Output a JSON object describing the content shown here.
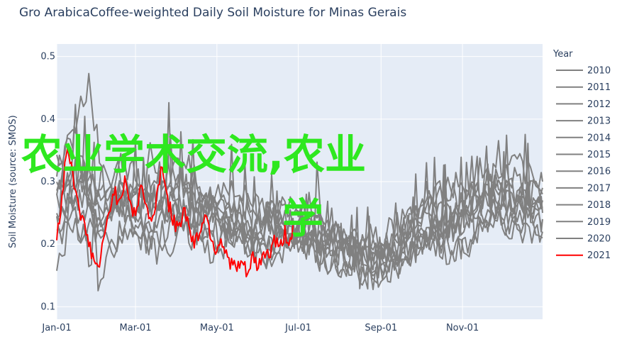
{
  "chart_data": {
    "type": "line",
    "title": "Gro ArabicaCoffee-weighted Daily Soil Moisture for Minas Gerais",
    "xlabel": "",
    "ylabel": "Soil Moisture (source: SMOS)",
    "x_tick_labels": [
      "Jan-01",
      "Mar-01",
      "May-01",
      "Jul-01",
      "Sep-01",
      "Nov-01"
    ],
    "y_tick_labels": [
      "0.1",
      "0.2",
      "0.3",
      "0.4",
      "0.5"
    ],
    "xlim_day_of_year": [
      1,
      365
    ],
    "ylim": [
      0.08,
      0.52
    ],
    "legend": {
      "title": "Year",
      "placement": "right"
    },
    "grid": true,
    "colors": {
      "plot_bg": "#e5ecf6",
      "grid": "#ffffff",
      "history": "#808080",
      "current": "#ff0000"
    },
    "series": [
      {
        "name": "2010",
        "color": "#808080",
        "anchors": [
          [
            1,
            0.25
          ],
          [
            20,
            0.3
          ],
          [
            35,
            0.22
          ],
          [
            50,
            0.34
          ],
          [
            70,
            0.27
          ],
          [
            90,
            0.32
          ],
          [
            110,
            0.25
          ],
          [
            130,
            0.28
          ],
          [
            150,
            0.21
          ],
          [
            170,
            0.26
          ],
          [
            200,
            0.22
          ],
          [
            230,
            0.2
          ],
          [
            250,
            0.17
          ],
          [
            270,
            0.22
          ],
          [
            290,
            0.29
          ],
          [
            310,
            0.25
          ],
          [
            330,
            0.31
          ],
          [
            365,
            0.27
          ]
        ]
      },
      {
        "name": "2011",
        "color": "#808080",
        "anchors": [
          [
            1,
            0.31
          ],
          [
            25,
            0.46
          ],
          [
            40,
            0.26
          ],
          [
            60,
            0.3
          ],
          [
            80,
            0.24
          ],
          [
            100,
            0.27
          ],
          [
            120,
            0.22
          ],
          [
            140,
            0.24
          ],
          [
            165,
            0.2
          ],
          [
            185,
            0.23
          ],
          [
            210,
            0.19
          ],
          [
            240,
            0.17
          ],
          [
            260,
            0.21
          ],
          [
            285,
            0.26
          ],
          [
            305,
            0.23
          ],
          [
            330,
            0.3
          ],
          [
            365,
            0.24
          ]
        ]
      },
      {
        "name": "2012",
        "color": "#808080",
        "anchors": [
          [
            1,
            0.27
          ],
          [
            15,
            0.35
          ],
          [
            30,
            0.28
          ],
          [
            55,
            0.25
          ],
          [
            75,
            0.33
          ],
          [
            95,
            0.29
          ],
          [
            115,
            0.26
          ],
          [
            135,
            0.22
          ],
          [
            155,
            0.25
          ],
          [
            180,
            0.21
          ],
          [
            205,
            0.24
          ],
          [
            225,
            0.18
          ],
          [
            255,
            0.2
          ],
          [
            275,
            0.27
          ],
          [
            300,
            0.22
          ],
          [
            320,
            0.33
          ],
          [
            345,
            0.26
          ],
          [
            365,
            0.29
          ]
        ]
      },
      {
        "name": "2013",
        "color": "#808080",
        "anchors": [
          [
            1,
            0.22
          ],
          [
            18,
            0.33
          ],
          [
            38,
            0.25
          ],
          [
            52,
            0.29
          ],
          [
            72,
            0.23
          ],
          [
            92,
            0.35
          ],
          [
            112,
            0.27
          ],
          [
            132,
            0.3
          ],
          [
            150,
            0.25
          ],
          [
            172,
            0.22
          ],
          [
            198,
            0.2
          ],
          [
            222,
            0.23
          ],
          [
            245,
            0.16
          ],
          [
            268,
            0.19
          ],
          [
            292,
            0.24
          ],
          [
            318,
            0.28
          ],
          [
            340,
            0.23
          ],
          [
            365,
            0.26
          ]
        ]
      },
      {
        "name": "2014",
        "color": "#808080",
        "anchors": [
          [
            1,
            0.2
          ],
          [
            22,
            0.26
          ],
          [
            40,
            0.19
          ],
          [
            58,
            0.24
          ],
          [
            78,
            0.18
          ],
          [
            98,
            0.22
          ],
          [
            118,
            0.19
          ],
          [
            138,
            0.21
          ],
          [
            160,
            0.18
          ],
          [
            182,
            0.2
          ],
          [
            208,
            0.17
          ],
          [
            235,
            0.15
          ],
          [
            258,
            0.17
          ],
          [
            282,
            0.22
          ],
          [
            305,
            0.19
          ],
          [
            328,
            0.25
          ],
          [
            365,
            0.21
          ]
        ]
      },
      {
        "name": "2015",
        "color": "#808080",
        "anchors": [
          [
            1,
            0.18
          ],
          [
            15,
            0.24
          ],
          [
            32,
            0.15
          ],
          [
            50,
            0.22
          ],
          [
            68,
            0.2
          ],
          [
            88,
            0.26
          ],
          [
            108,
            0.21
          ],
          [
            128,
            0.24
          ],
          [
            150,
            0.19
          ],
          [
            175,
            0.22
          ],
          [
            200,
            0.18
          ],
          [
            228,
            0.14
          ],
          [
            252,
            0.16
          ],
          [
            275,
            0.2
          ],
          [
            300,
            0.18
          ],
          [
            325,
            0.24
          ],
          [
            365,
            0.22
          ]
        ]
      },
      {
        "name": "2016",
        "color": "#808080",
        "anchors": [
          [
            1,
            0.3
          ],
          [
            14,
            0.38
          ],
          [
            28,
            0.27
          ],
          [
            45,
            0.32
          ],
          [
            62,
            0.25
          ],
          [
            84,
            0.29
          ],
          [
            104,
            0.24
          ],
          [
            124,
            0.27
          ],
          [
            146,
            0.23
          ],
          [
            168,
            0.26
          ],
          [
            194,
            0.21
          ],
          [
            220,
            0.19
          ],
          [
            246,
            0.22
          ],
          [
            270,
            0.25
          ],
          [
            296,
            0.3
          ],
          [
            322,
            0.27
          ],
          [
            346,
            0.33
          ],
          [
            365,
            0.28
          ]
        ]
      },
      {
        "name": "2017",
        "color": "#808080",
        "anchors": [
          [
            1,
            0.23
          ],
          [
            20,
            0.31
          ],
          [
            36,
            0.24
          ],
          [
            54,
            0.27
          ],
          [
            76,
            0.21
          ],
          [
            96,
            0.25
          ],
          [
            116,
            0.2
          ],
          [
            136,
            0.23
          ],
          [
            158,
            0.19
          ],
          [
            180,
            0.22
          ],
          [
            204,
            0.18
          ],
          [
            232,
            0.16
          ],
          [
            256,
            0.18
          ],
          [
            280,
            0.21
          ],
          [
            304,
            0.26
          ],
          [
            326,
            0.22
          ],
          [
            350,
            0.28
          ],
          [
            365,
            0.25
          ]
        ]
      },
      {
        "name": "2018",
        "color": "#808080",
        "anchors": [
          [
            1,
            0.28
          ],
          [
            16,
            0.32
          ],
          [
            34,
            0.23
          ],
          [
            48,
            0.28
          ],
          [
            66,
            0.3
          ],
          [
            86,
            0.26
          ],
          [
            106,
            0.29
          ],
          [
            126,
            0.24
          ],
          [
            148,
            0.27
          ],
          [
            170,
            0.23
          ],
          [
            196,
            0.25
          ],
          [
            218,
            0.2
          ],
          [
            242,
            0.18
          ],
          [
            266,
            0.23
          ],
          [
            290,
            0.2
          ],
          [
            314,
            0.27
          ],
          [
            338,
            0.31
          ],
          [
            365,
            0.27
          ]
        ]
      },
      {
        "name": "2019",
        "color": "#808080",
        "anchors": [
          [
            1,
            0.26
          ],
          [
            24,
            0.22
          ],
          [
            42,
            0.29
          ],
          [
            60,
            0.23
          ],
          [
            82,
            0.28
          ],
          [
            102,
            0.23
          ],
          [
            122,
            0.26
          ],
          [
            142,
            0.2
          ],
          [
            164,
            0.24
          ],
          [
            186,
            0.19
          ],
          [
            212,
            0.22
          ],
          [
            238,
            0.17
          ],
          [
            262,
            0.19
          ],
          [
            286,
            0.24
          ],
          [
            310,
            0.21
          ],
          [
            334,
            0.29
          ],
          [
            365,
            0.23
          ]
        ]
      },
      {
        "name": "2020",
        "color": "#808080",
        "anchors": [
          [
            1,
            0.33
          ],
          [
            18,
            0.27
          ],
          [
            36,
            0.31
          ],
          [
            54,
            0.25
          ],
          [
            74,
            0.28
          ],
          [
            94,
            0.23
          ],
          [
            114,
            0.26
          ],
          [
            134,
            0.21
          ],
          [
            156,
            0.24
          ],
          [
            178,
            0.2
          ],
          [
            202,
            0.23
          ],
          [
            226,
            0.17
          ],
          [
            250,
            0.2
          ],
          [
            274,
            0.25
          ],
          [
            298,
            0.22
          ],
          [
            322,
            0.28
          ],
          [
            348,
            0.25
          ],
          [
            365,
            0.3
          ]
        ]
      },
      {
        "name": "2021",
        "color": "#ff0000",
        "anchors": [
          [
            1,
            0.21
          ],
          [
            5,
            0.28
          ],
          [
            9,
            0.36
          ],
          [
            13,
            0.31
          ],
          [
            17,
            0.27
          ],
          [
            20,
            0.24
          ],
          [
            24,
            0.21
          ],
          [
            28,
            0.18
          ],
          [
            32,
            0.16
          ],
          [
            36,
            0.2
          ],
          [
            40,
            0.25
          ],
          [
            44,
            0.29
          ],
          [
            48,
            0.26
          ],
          [
            52,
            0.31
          ],
          [
            56,
            0.27
          ],
          [
            60,
            0.24
          ],
          [
            64,
            0.3
          ],
          [
            68,
            0.26
          ],
          [
            72,
            0.23
          ],
          [
            76,
            0.28
          ],
          [
            80,
            0.33
          ],
          [
            84,
            0.27
          ],
          [
            88,
            0.24
          ],
          [
            92,
            0.22
          ],
          [
            96,
            0.26
          ],
          [
            100,
            0.23
          ],
          [
            104,
            0.2
          ],
          [
            108,
            0.22
          ],
          [
            112,
            0.25
          ],
          [
            116,
            0.22
          ],
          [
            120,
            0.19
          ],
          [
            124,
            0.21
          ],
          [
            128,
            0.18
          ],
          [
            132,
            0.17
          ],
          [
            136,
            0.16
          ],
          [
            140,
            0.17
          ],
          [
            144,
            0.15
          ],
          [
            148,
            0.18
          ],
          [
            152,
            0.16
          ],
          [
            156,
            0.19
          ],
          [
            160,
            0.18
          ],
          [
            164,
            0.21
          ],
          [
            168,
            0.19
          ],
          [
            172,
            0.22
          ],
          [
            175,
            0.2
          ],
          [
            178,
            0.23
          ]
        ]
      }
    ]
  },
  "watermark": "农业学术交流,农业学"
}
